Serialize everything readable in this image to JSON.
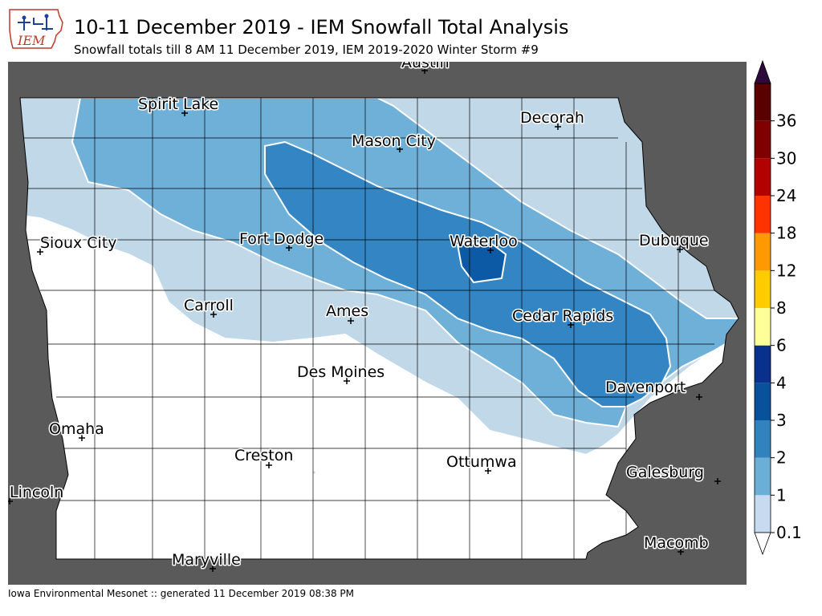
{
  "title": "10-11 December 2019 - IEM Snowfall Total Analysis",
  "subtitle": "Snowfall totals till 8 AM 11 December 2019, IEM 2019-2020 Winter Storm #9",
  "footer": "Iowa Environmental Mesonet :: generated 11 December 2019 08:38 PM",
  "logo": {
    "text": "IEM"
  },
  "colors": {
    "outside": "#5a5a5a",
    "land": "#ffffff",
    "county_lines": "#000000",
    "contour_lines": "#ffffff",
    "snow_0_1": "#c1d8e8",
    "snow_1": "#6fb0d9",
    "snow_2": "#3385c4",
    "snow_3": "#0c5aa6"
  },
  "legend": {
    "levels": [
      "0.1",
      "1",
      "2",
      "3",
      "4",
      "6",
      "8",
      "12",
      "18",
      "24",
      "30",
      "36"
    ],
    "colors": [
      "#c6dbef",
      "#6baed6",
      "#3182bd",
      "#08519c",
      "#08308c",
      "#ffff99",
      "#ffcc00",
      "#ff9900",
      "#ff3300",
      "#b30000",
      "#800000",
      "#5a0000"
    ],
    "over_color": "#2d0a3c",
    "under_color": "#ffffff"
  },
  "cities": [
    {
      "name": "Austin"
    },
    {
      "name": "Spirit Lake"
    },
    {
      "name": "Decorah"
    },
    {
      "name": "Mason City"
    },
    {
      "name": "Sioux City"
    },
    {
      "name": "Fort Dodge"
    },
    {
      "name": "Waterloo"
    },
    {
      "name": "Dubuque"
    },
    {
      "name": "Carroll"
    },
    {
      "name": "Ames"
    },
    {
      "name": "Cedar Rapids"
    },
    {
      "name": "Des Moines"
    },
    {
      "name": "Davenport"
    },
    {
      "name": "Omaha"
    },
    {
      "name": "Creston"
    },
    {
      "name": "Ottumwa"
    },
    {
      "name": "Galesburg"
    },
    {
      "name": "Lincoln"
    },
    {
      "name": "Macomb"
    },
    {
      "name": "Maryville"
    }
  ]
}
